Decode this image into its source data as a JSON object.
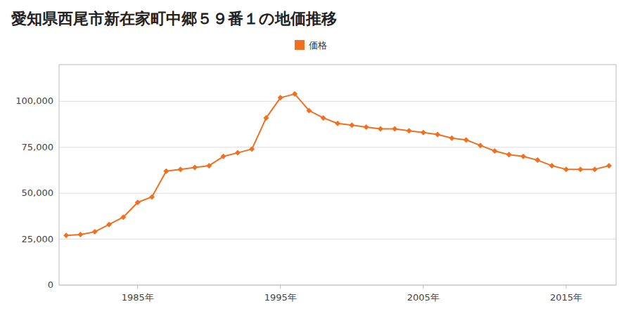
{
  "chart_data": {
    "type": "line",
    "title": "愛知県西尾市新在家町中郷５９番１の地価推移",
    "x": [
      1980,
      1981,
      1982,
      1983,
      1984,
      1985,
      1986,
      1987,
      1988,
      1989,
      1990,
      1991,
      1992,
      1993,
      1994,
      1995,
      1996,
      1997,
      1998,
      1999,
      2000,
      2001,
      2002,
      2003,
      2004,
      2005,
      2006,
      2007,
      2008,
      2009,
      2010,
      2011,
      2012,
      2013,
      2014,
      2015,
      2016,
      2017,
      2018
    ],
    "series": [
      {
        "name": "価格",
        "color": "#f07020",
        "marker": "diamond",
        "values": [
          27000,
          27500,
          29000,
          33000,
          37000,
          45000,
          48000,
          62000,
          63000,
          64000,
          65000,
          70000,
          72000,
          74000,
          91000,
          102000,
          104000,
          95000,
          91000,
          88000,
          87000,
          86000,
          85000,
          85000,
          84000,
          83000,
          82000,
          80000,
          79000,
          76000,
          73000,
          71000,
          70000,
          68000,
          65000,
          63000,
          63000,
          63000,
          65000
        ]
      }
    ],
    "xlim": [
      1979.5,
      2018.5
    ],
    "xticks": [
      {
        "value": 1985,
        "label": "1985年"
      },
      {
        "value": 1995,
        "label": "1995年"
      },
      {
        "value": 2005,
        "label": "2005年"
      },
      {
        "value": 2015,
        "label": "2015年"
      }
    ],
    "ylim": [
      0,
      120000
    ],
    "yticks": [
      0,
      {
        "value": 25000,
        "label": "25,000"
      },
      {
        "value": 50000,
        "label": "50,000"
      },
      {
        "value": 75000,
        "label": "75,000"
      },
      {
        "value": 100000,
        "label": "100,000"
      }
    ],
    "grid": true,
    "legend": "top"
  }
}
